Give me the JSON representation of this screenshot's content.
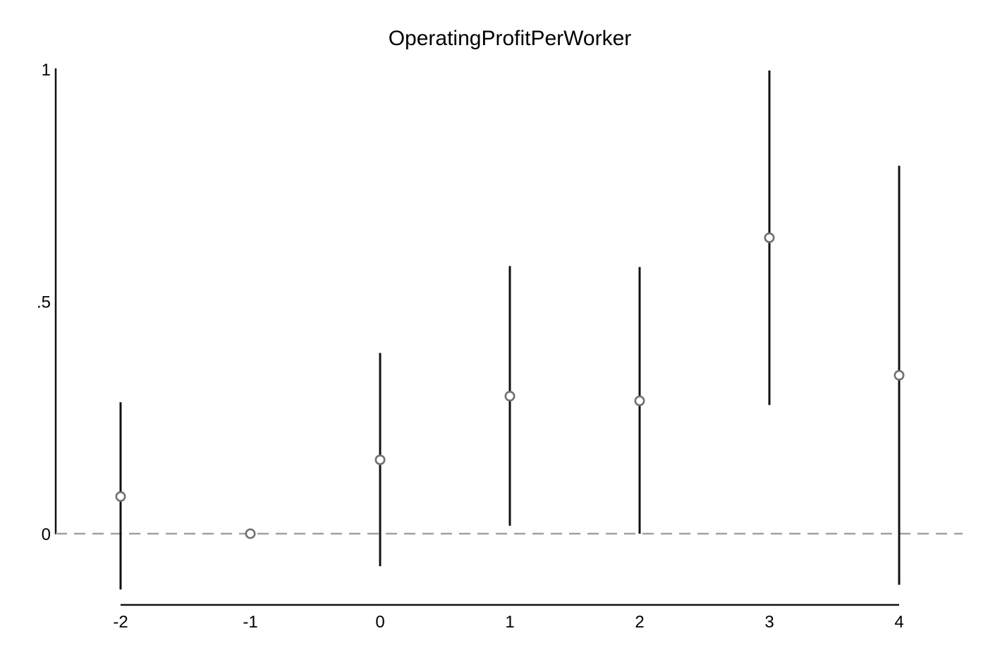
{
  "chart_data": {
    "type": "scatter",
    "title": "OperatingProfitPerWorker",
    "xlabel": "",
    "ylabel": "",
    "x_ticks": [
      "-2",
      "-1",
      "0",
      "1",
      "2",
      "3",
      "4"
    ],
    "y_ticks": [
      "0",
      ".5",
      "1"
    ],
    "xlim": [
      -2.5,
      4.5
    ],
    "ylim": [
      -0.15,
      1.0
    ],
    "grid": false,
    "reference_line": {
      "y": 0,
      "style": "dashed",
      "color": "#a0a0a0"
    },
    "series": [
      {
        "marker": "hollow-circle",
        "marker_color": "#707070",
        "errorbar_color": "#111111",
        "points": [
          {
            "x": -2,
            "y": 0.08,
            "ci_low": -0.12,
            "ci_high": 0.283
          },
          {
            "x": -1,
            "y": 0.0,
            "ci_low": null,
            "ci_high": null
          },
          {
            "x": 0,
            "y": 0.159,
            "ci_low": -0.07,
            "ci_high": 0.389
          },
          {
            "x": 1,
            "y": 0.296,
            "ci_low": 0.017,
            "ci_high": 0.576
          },
          {
            "x": 2,
            "y": 0.286,
            "ci_low": 0.0,
            "ci_high": 0.574
          },
          {
            "x": 3,
            "y": 0.637,
            "ci_low": 0.277,
            "ci_high": 0.997
          },
          {
            "x": 4,
            "y": 0.341,
            "ci_low": -0.11,
            "ci_high": 0.792
          }
        ]
      }
    ]
  }
}
